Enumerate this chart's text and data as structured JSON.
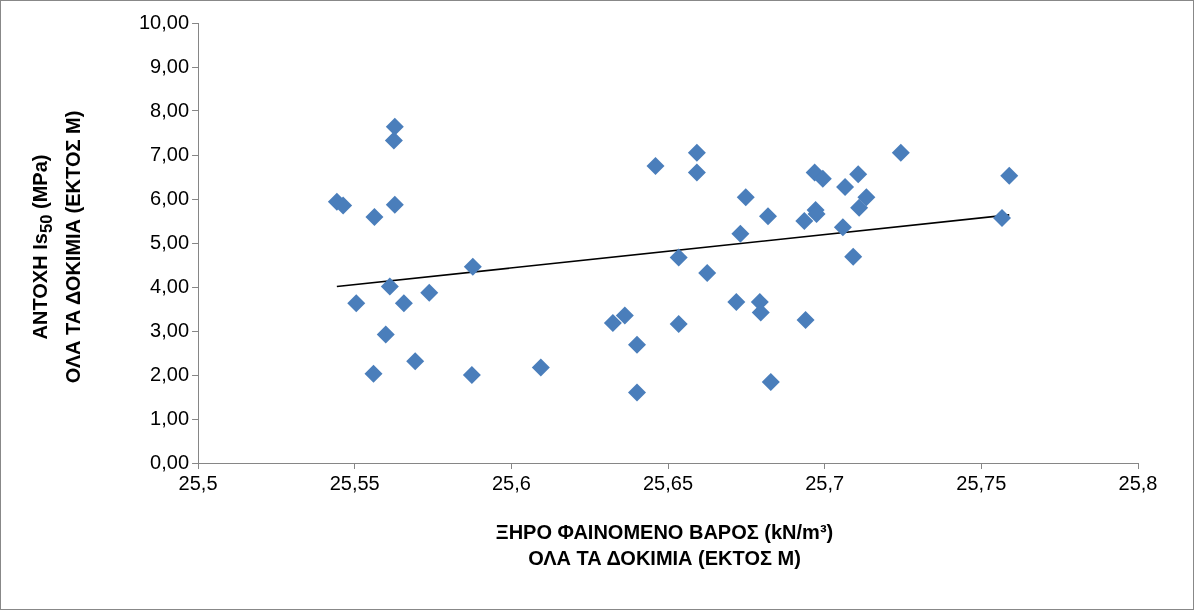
{
  "chart_data": {
    "type": "scatter",
    "xlabel": "ΞΗΡΟ ΦΑΙΝΟΜΕΝΟ ΒΑΡΟΣ (kN/m³)\nΟΛΑ ΤΑ ΔΟΚΙΜΙΑ (ΕΚΤΟΣ Μ)",
    "ylabel": "ΑΝΤΟΧΗ Is$_{50}$ (MPa)\nΟΛΑ ΤΑ ΔΟΚΙΜΙΑ (ΕΚΤΟΣ Μ)",
    "series": [
      {
        "color": "#4a7ebb",
        "x": [
          25.5443,
          25.5463,
          25.5505,
          25.5563,
          25.556,
          25.5599,
          25.5612,
          25.5625,
          25.5628,
          25.5628,
          25.5657,
          25.5693,
          25.5738,
          25.5874,
          25.5877,
          25.6094,
          25.6324,
          25.6362,
          25.6401,
          25.6401,
          25.646,
          25.6534,
          25.6534,
          25.6592,
          25.6592,
          25.6625,
          25.6718,
          25.6731,
          25.6748,
          25.6793,
          25.6796,
          25.6819,
          25.6828,
          25.6935,
          25.6939,
          25.6968,
          25.6971,
          25.6974,
          25.6994,
          25.7058,
          25.7065,
          25.7091,
          25.7107,
          25.711,
          25.7133,
          25.7243,
          25.7566,
          25.7589
        ],
        "values": [
          5.94,
          5.85,
          3.63,
          5.59,
          2.03,
          2.92,
          4.01,
          7.33,
          7.64,
          5.87,
          3.63,
          2.31,
          3.87,
          2.0,
          4.46,
          2.17,
          3.18,
          3.35,
          2.69,
          1.6,
          6.75,
          3.16,
          4.67,
          7.05,
          6.6,
          4.32,
          3.66,
          5.21,
          6.04,
          3.66,
          3.42,
          5.61,
          1.84,
          5.5,
          3.25,
          6.6,
          5.75,
          5.66,
          6.46,
          5.36,
          6.27,
          4.69,
          6.56,
          5.8,
          6.04,
          7.05,
          5.57,
          6.53
        ]
      },
      {
        "type": "line",
        "marker": "none",
        "color": "#000000",
        "x": [
          25.5443,
          25.7589
        ],
        "values": [
          4.01,
          5.64
        ]
      }
    ],
    "xlim": [
      25.5,
      25.8
    ],
    "xticks": [
      {
        "value": 25.5,
        "label": "25,5"
      },
      {
        "value": 25.55,
        "label": "25,55"
      },
      {
        "value": 25.6,
        "label": "25,6"
      },
      {
        "value": 25.65,
        "label": "25,65"
      },
      {
        "value": 25.7,
        "label": "25,7"
      },
      {
        "value": 25.75,
        "label": "25,75"
      },
      {
        "value": 25.8,
        "label": "25,8"
      }
    ],
    "ylim": [
      0,
      10
    ],
    "yticks": [
      {
        "value": 0,
        "label": "0,00"
      },
      {
        "value": 1,
        "label": "1,00"
      },
      {
        "value": 2,
        "label": "2,00"
      },
      {
        "value": 3,
        "label": "3,00"
      },
      {
        "value": 4,
        "label": "4,00"
      },
      {
        "value": 5,
        "label": "5,00"
      },
      {
        "value": 6,
        "label": "6,00"
      },
      {
        "value": 7,
        "label": "7,00"
      },
      {
        "value": 8,
        "label": "8,00"
      },
      {
        "value": 9,
        "label": "9,00"
      },
      {
        "value": 10,
        "label": "10,00"
      }
    ],
    "grid": false,
    "legend": false,
    "marker": "diamond"
  }
}
